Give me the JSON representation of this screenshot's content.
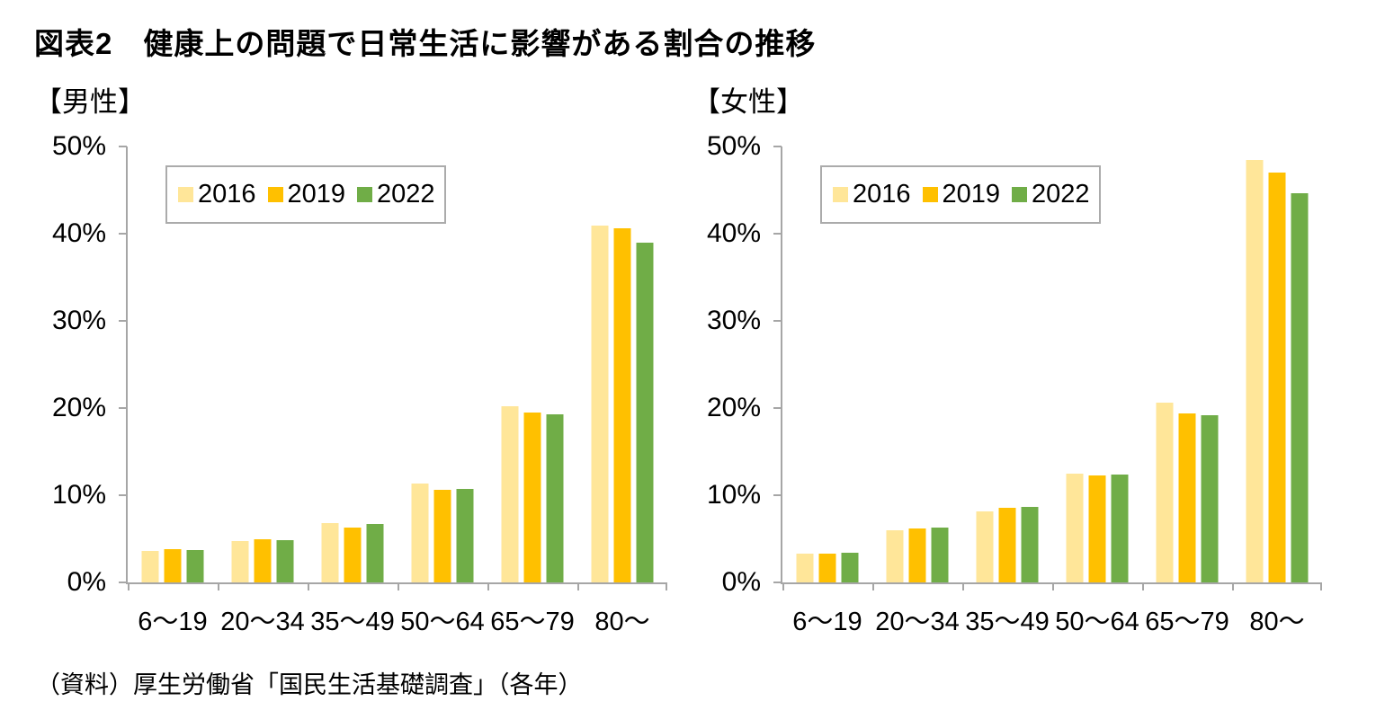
{
  "title": "図表2　健康上の問題で日常生活に影響がある割合の推移",
  "source_note": "（資料）厚生労働省「国民生活基礎調査」（各年）",
  "colors": {
    "series": {
      "2016": "#FFE699",
      "2019": "#FFC000",
      "2022": "#70AD47"
    },
    "axis": "#A6A6A6",
    "legend_border": "#ABABAB",
    "text": "#000000"
  },
  "chart_data": [
    {
      "type": "bar",
      "title": "【男性】",
      "categories": [
        "6〜19",
        "20〜34",
        "35〜49",
        "50〜64",
        "65〜79",
        "80〜"
      ],
      "series": [
        {
          "name": "2016",
          "values": [
            3.6,
            4.7,
            6.8,
            11.3,
            20.2,
            40.9
          ]
        },
        {
          "name": "2019",
          "values": [
            3.8,
            4.9,
            6.3,
            10.6,
            19.5,
            40.6
          ]
        },
        {
          "name": "2022",
          "values": [
            3.7,
            4.8,
            6.7,
            10.7,
            19.3,
            39.0
          ]
        }
      ],
      "ylabel": "",
      "xlabel": "",
      "ylim": [
        0,
        50
      ],
      "ytick_labels": [
        "0%",
        "10%",
        "20%",
        "30%",
        "40%",
        "50%"
      ],
      "grid": false,
      "legend_position": "top-left-inside"
    },
    {
      "type": "bar",
      "title": "【女性】",
      "categories": [
        "6〜19",
        "20〜34",
        "35〜49",
        "50〜64",
        "65〜79",
        "80〜"
      ],
      "series": [
        {
          "name": "2016",
          "values": [
            3.3,
            6.0,
            8.1,
            12.5,
            20.6,
            48.5
          ]
        },
        {
          "name": "2019",
          "values": [
            3.3,
            6.2,
            8.6,
            12.3,
            19.4,
            47.0
          ]
        },
        {
          "name": "2022",
          "values": [
            3.4,
            6.3,
            8.7,
            12.4,
            19.2,
            44.6
          ]
        }
      ],
      "ylabel": "",
      "xlabel": "",
      "ylim": [
        0,
        50
      ],
      "ytick_labels": [
        "0%",
        "10%",
        "20%",
        "30%",
        "40%",
        "50%"
      ],
      "grid": false,
      "legend_position": "top-left-inside"
    }
  ]
}
